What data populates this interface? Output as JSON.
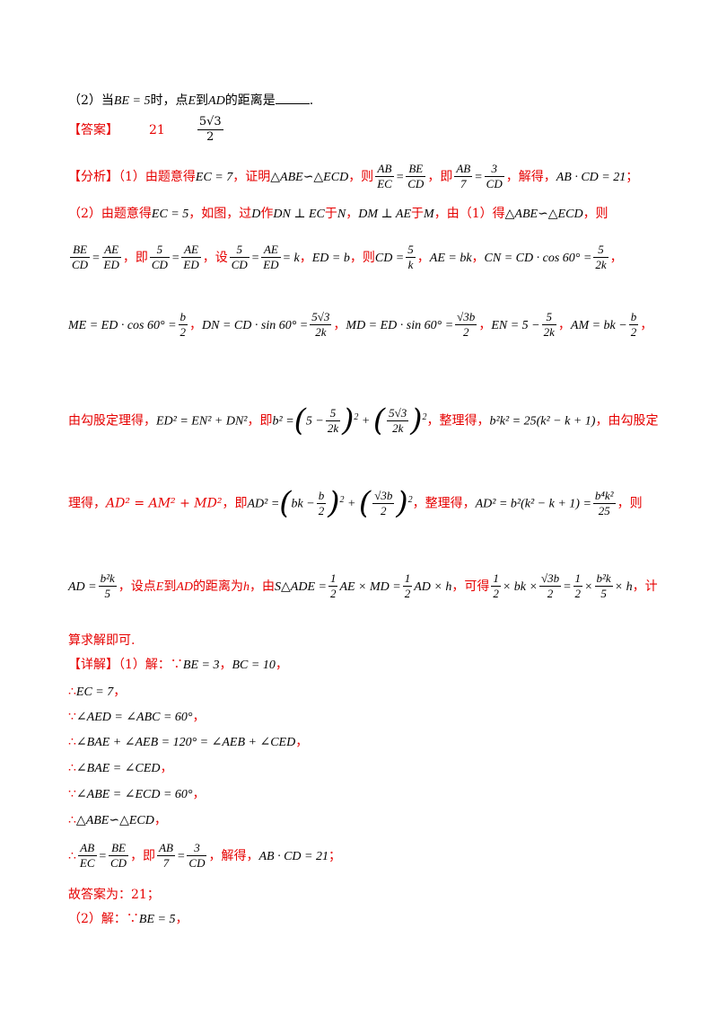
{
  "q2": {
    "prefix": "（2）当",
    "cond": "BE = 5",
    "mid": "时，点",
    "e": "E",
    "to": "到",
    "ad": "AD",
    "tail": "的距离是",
    "end": "."
  },
  "answer": {
    "label": "【答案】",
    "a1": "21",
    "a2_num": "5√3",
    "a2_den": "2"
  },
  "analysis": {
    "label": "【分析】",
    "l1": {
      "t1": "（1）由题意得",
      "m1": "EC = 7",
      "t2": "，证明",
      "m2": "△ABE∽△ECD",
      "t3": "，则",
      "f1n": "AB",
      "f1d": "EC",
      "eq": "=",
      "f2n": "BE",
      "f2d": "CD",
      "t4": "，即",
      "f3n": "AB",
      "f3d": "7",
      "f4n": "3",
      "f4d": "CD",
      "t5": "，解得，",
      "m3": "AB · CD = 21",
      "t6": "；"
    },
    "l2": {
      "t1": "（2）由题意得",
      "m1": "EC = 5",
      "t2": "，如图，过",
      "d": "D",
      "t3": "作",
      "m2": "DN ⊥ EC",
      "t4": "于",
      "n": "N",
      "t5": "，",
      "m3": "DM ⊥ AE",
      "t6": "于",
      "mm": "M",
      "t7": "，由（1）得",
      "m4": "△ABE∽△ECD",
      "t8": "，则"
    },
    "l3": {
      "f1n": "BE",
      "f1d": "CD",
      "f2n": "AE",
      "f2d": "ED",
      "t1": "，即",
      "f3n": "5",
      "f3d": "CD",
      "f4n": "AE",
      "f4d": "ED",
      "t2": "，设",
      "f5n": "5",
      "f5d": "CD",
      "f6n": "AE",
      "f6d": "ED",
      "k": "= k",
      "t3": "，",
      "m1": "ED = b",
      "t4": "，则",
      "m2": "CD =",
      "f7n": "5",
      "f7d": "k",
      "t5": "，",
      "m3": "AE = bk",
      "t6": "，",
      "m4": "CN = CD · cos 60° =",
      "f8n": "5",
      "f8d": "2k",
      "t7": "，"
    },
    "l4": {
      "m1": "ME = ED · cos 60° =",
      "f1n": "b",
      "f1d": "2",
      "t1": "，",
      "m2": "DN = CD · sin 60° =",
      "f2n": "5√3",
      "f2d": "2k",
      "t2": "，",
      "m3": "MD = ED · sin 60° =",
      "f3n": "√3b",
      "f3d": "2",
      "t3": "，",
      "m4": "EN = 5 −",
      "f4n": "5",
      "f4d": "2k",
      "t4": "，",
      "m5": "AM = bk −",
      "f5n": "b",
      "f5d": "2",
      "t5": "，"
    },
    "l5": {
      "t1": "由勾股定理得，",
      "m1": "ED² = EN² + DN²",
      "t2": "，即",
      "m2": "b² =",
      "in1": "5 −",
      "f1n": "5",
      "f1d": "2k",
      "f2n": "5√3",
      "f2d": "2k",
      "t3": "，整理得，",
      "m3": "b²k² = 25(k² − k + 1)",
      "t4": "，由勾股定"
    },
    "l6": {
      "t1": "理得，",
      "m1": "AD² = AM² + MD²",
      "t2": "，即",
      "m2": "AD² =",
      "in1": "bk −",
      "f1n": "b",
      "f1d": "2",
      "f2n": "√3b",
      "f2d": "2",
      "t3": "，整理得，",
      "m3": "AD² = b²(k² − k + 1) =",
      "f3n": "b⁴k²",
      "f3d": "25",
      "t4": "，则"
    },
    "l7": {
      "m1": "AD =",
      "f1n": "b²k",
      "f1d": "5",
      "t1": "，设点",
      "e": "E",
      "t2": "到",
      "ad": "AD",
      "t3": "的距离为",
      "h": "h",
      "t4": "，由",
      "m2": "S△ADE =",
      "f2n": "1",
      "f2d": "2",
      "m3": "AE × MD =",
      "f3n": "1",
      "f3d": "2",
      "m4": "AD × h",
      "t5": "，可得",
      "f4n": "1",
      "f4d": "2",
      "m5": "× bk ×",
      "f5n": "√3b",
      "f5d": "2",
      "f6n": "1",
      "f6d": "2",
      "m6": "×",
      "f7n": "b²k",
      "f7d": "5",
      "m7": "× h",
      "t6": "，计"
    },
    "l8": "算求解即可."
  },
  "detail": {
    "label": "【详解】",
    "l1": {
      "t1": "（1）解：∵",
      "m1": "BE = 3",
      "t2": "，",
      "m2": "BC = 10",
      "t3": "，"
    },
    "l2": {
      "s": "∴",
      "m": "EC = 7",
      "t": "，"
    },
    "l3": {
      "s": "∵",
      "m": "∠AED = ∠ABC = 60°",
      "t": "，"
    },
    "l4": {
      "s": "∴",
      "m": "∠BAE + ∠AEB = 120° = ∠AEB + ∠CED",
      "t": "，"
    },
    "l5": {
      "s": "∴",
      "m": "∠BAE = ∠CED",
      "t": "，"
    },
    "l6": {
      "s": "∵",
      "m": "∠ABE = ∠ECD = 60°",
      "t": "，"
    },
    "l7": {
      "s": "∴",
      "m": "△ABE∽△ECD",
      "t": "，"
    },
    "l8": {
      "s": "∴",
      "f1n": "AB",
      "f1d": "EC",
      "f2n": "BE",
      "f2d": "CD",
      "t1": "，即",
      "f3n": "AB",
      "f3d": "7",
      "f4n": "3",
      "f4d": "CD",
      "t2": "，解得，",
      "m": "AB · CD = 21",
      "t3": "；"
    },
    "l9": "故答案为：21；",
    "l10": {
      "t1": "（2）解：∵",
      "m": "BE = 5",
      "t2": "，"
    }
  }
}
